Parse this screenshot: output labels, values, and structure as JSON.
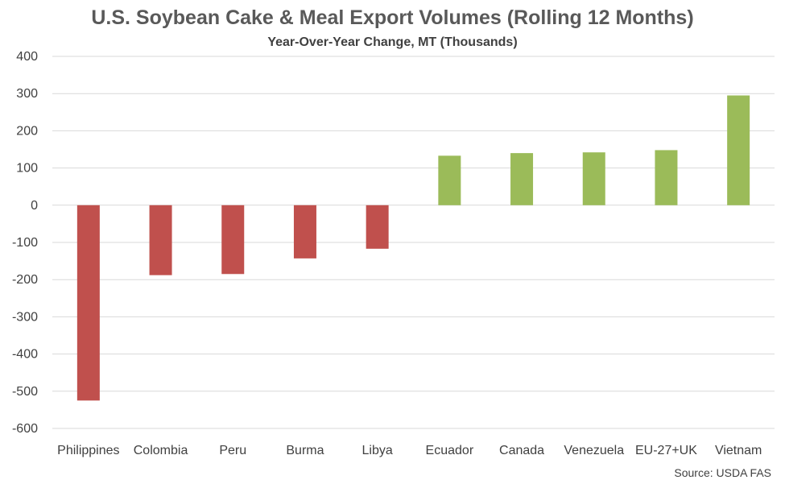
{
  "title": "U.S. Soybean Cake & Meal Export Volumes (Rolling 12 Months)",
  "subtitle": "Year-Over-Year Change, MT (Thousands)",
  "source": "Source: USDA FAS",
  "colors": {
    "negative": "#C0504D",
    "positive": "#9BBB59",
    "grid": "#D9D9D9",
    "text": "#404040"
  },
  "chart_data": {
    "type": "bar",
    "title": "U.S. Soybean Cake & Meal Export Volumes (Rolling 12 Months)",
    "subtitle": "Year-Over-Year Change, MT (Thousands)",
    "xlabel": "",
    "ylabel": "",
    "categories": [
      "Philippines",
      "Colombia",
      "Peru",
      "Burma",
      "Libya",
      "Ecuador",
      "Canada",
      "Venezuela",
      "EU-27+UK",
      "Vietnam"
    ],
    "values": [
      -525,
      -188,
      -185,
      -143,
      -117,
      133,
      140,
      142,
      148,
      295
    ],
    "ylim": [
      -600,
      400
    ],
    "yticks": [
      400,
      300,
      200,
      100,
      0,
      -100,
      -200,
      -300,
      -400,
      -500,
      -600
    ],
    "grid": true,
    "legend": "none"
  }
}
